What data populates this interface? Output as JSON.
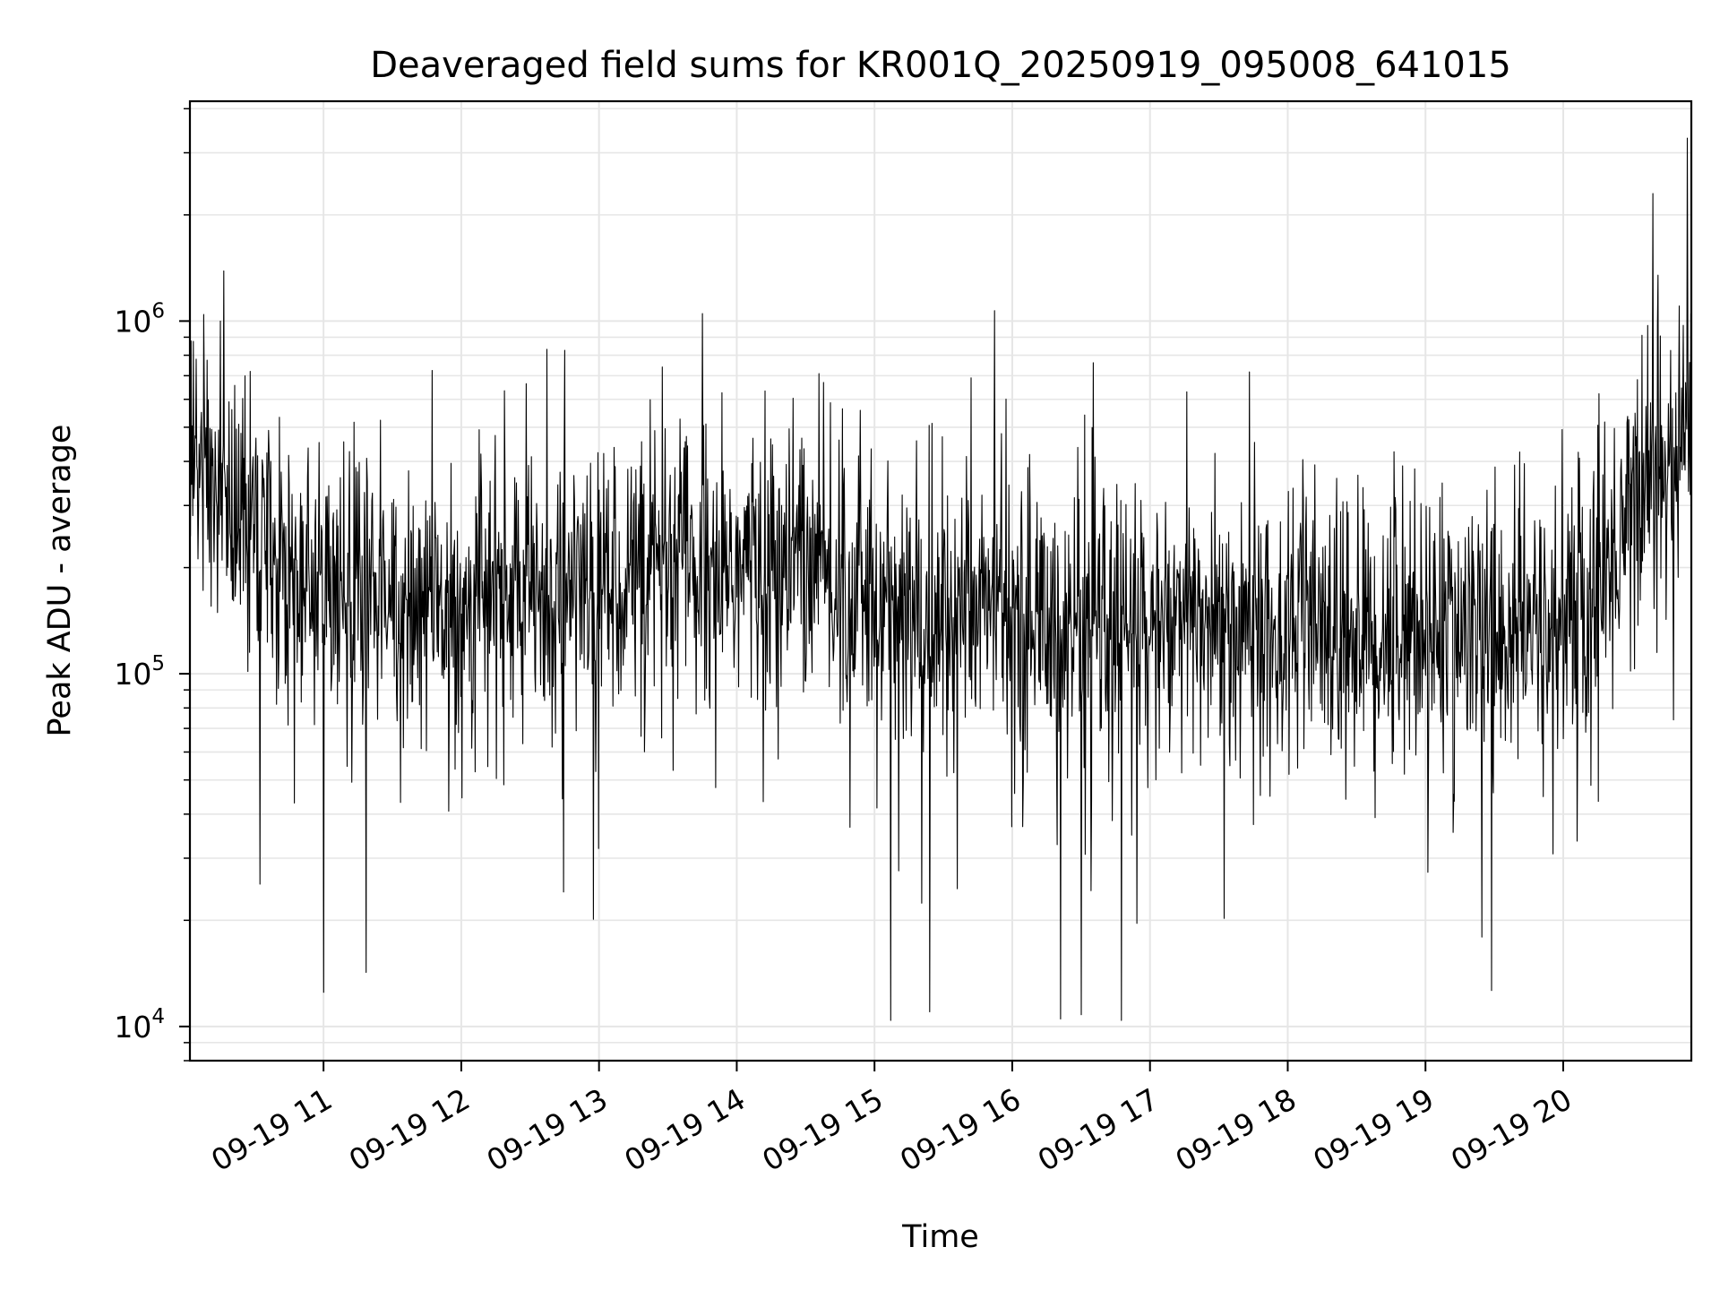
{
  "chart_data": {
    "type": "line",
    "title": "Deaveraged field sums for KR001Q_20250919_095008_641015",
    "xlabel": "Time",
    "ylabel": "Peak ADU - average",
    "yscale": "log",
    "ylim": [
      8000,
      4200000
    ],
    "xlim_hours": [
      10.03,
      20.93
    ],
    "x_tick_labels": [
      "09-19 11",
      "09-19 12",
      "09-19 13",
      "09-19 14",
      "09-19 15",
      "09-19 16",
      "09-19 17",
      "09-19 18",
      "09-19 19",
      "09-19 20"
    ],
    "y_tick_labels": [
      {
        "base": "10",
        "exp": "4"
      },
      {
        "base": "10",
        "exp": "5"
      },
      {
        "base": "10",
        "exp": "6"
      }
    ],
    "grid": true,
    "line_color": "#000000",
    "grid_color": "#e6e6e6",
    "series": [
      {
        "sample_interval_minutes": 0.25,
        "note_trend_hour": [
          10.03,
          10.3,
          10.8,
          11.5,
          12.5,
          13.5,
          14.5,
          15.3,
          15.8,
          16.5,
          17.5,
          18.5,
          19.3,
          20.0,
          20.3,
          20.5,
          20.93
        ],
        "note_trend_value": [
          420000,
          320000,
          190000,
          150000,
          170000,
          200000,
          200000,
          140000,
          160000,
          130000,
          140000,
          130000,
          130000,
          130000,
          180000,
          330000,
          520000
        ],
        "notable_peaks": [
          {
            "hour": 10.25,
            "value": 1000000
          },
          {
            "hour": 13.75,
            "value": 1050000
          },
          {
            "hour": 15.7,
            "value": 690000
          },
          {
            "hour": 20.65,
            "value": 2300000
          },
          {
            "hour": 20.9,
            "value": 3300000
          }
        ],
        "notable_dips": [
          {
            "hour": 11.0,
            "value": 12500
          },
          {
            "hour": 15.4,
            "value": 11000
          },
          {
            "hour": 16.35,
            "value": 10500
          },
          {
            "hour": 16.5,
            "value": 10800
          }
        ]
      }
    ]
  }
}
